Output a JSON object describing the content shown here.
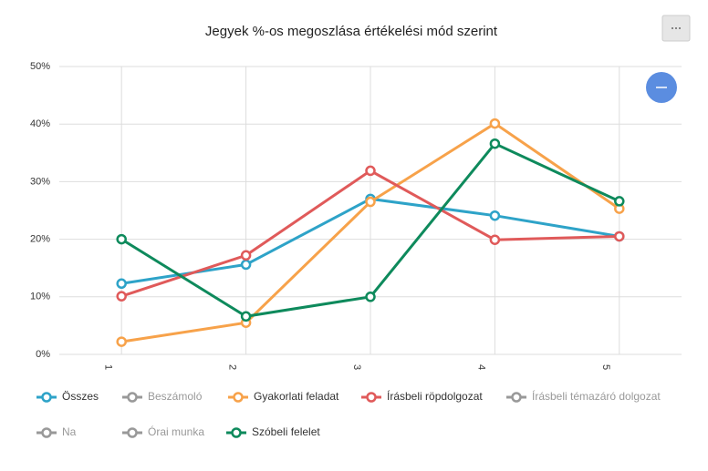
{
  "chart_data": {
    "type": "line",
    "title": "Jegyek %-os megoszlása értékelési mód szerint",
    "categories": [
      "1",
      "2",
      "3",
      "4",
      "5"
    ],
    "series": [
      {
        "name": "Összes",
        "color": "#2ea3c8",
        "visible": true,
        "values": [
          12.3,
          15.6,
          27,
          24.1,
          20.5
        ]
      },
      {
        "name": "Beszámoló",
        "color": "#999999",
        "visible": false,
        "values": [
          null,
          null,
          null,
          null,
          null
        ]
      },
      {
        "name": "Gyakorlati feladat",
        "color": "#f7a24a",
        "visible": true,
        "values": [
          2.2,
          5.5,
          26.5,
          40.1,
          25.3
        ]
      },
      {
        "name": "Írásbeli röpdolgozat",
        "color": "#e05a5a",
        "visible": true,
        "values": [
          10.1,
          17.2,
          31.9,
          19.9,
          20.5
        ]
      },
      {
        "name": "Írásbeli témazáró dolgozat",
        "color": "#999999",
        "visible": false,
        "values": [
          null,
          null,
          null,
          null,
          null
        ]
      },
      {
        "name": "Na",
        "color": "#999999",
        "visible": false,
        "values": [
          null,
          null,
          null,
          null,
          null
        ]
      },
      {
        "name": "Órai munka",
        "color": "#999999",
        "visible": false,
        "values": [
          null,
          null,
          null,
          null,
          null
        ]
      },
      {
        "name": "Szóbeli felelet",
        "color": "#0e8a5c",
        "visible": true,
        "values": [
          20,
          6.6,
          10,
          36.6,
          26.6
        ]
      }
    ],
    "ylim": [
      0,
      50
    ],
    "yticks": [
      {
        "value": 0,
        "label": "0%"
      },
      {
        "value": 10,
        "label": "10%"
      },
      {
        "value": 20,
        "label": "20%"
      },
      {
        "value": 30,
        "label": "30%"
      },
      {
        "value": 40,
        "label": "40%"
      },
      {
        "value": 50,
        "label": "50%"
      }
    ],
    "grid": true
  }
}
